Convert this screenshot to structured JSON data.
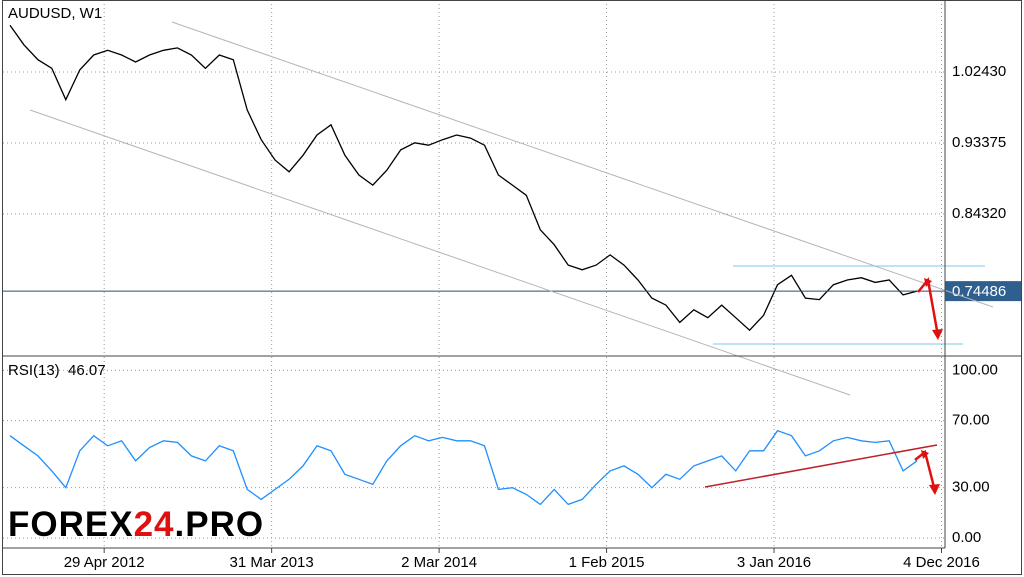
{
  "chart_data": [
    {
      "type": "line",
      "title": "AUDUSD, W1",
      "show_last": "axis",
      "grid": true,
      "x": [
        -27,
        -23,
        -19,
        -15,
        -11,
        -7,
        -3,
        1,
        5,
        9,
        13,
        17,
        21,
        25,
        29,
        33,
        37,
        41,
        45,
        49,
        53,
        57,
        61,
        65,
        69,
        73,
        77,
        81,
        85,
        89,
        93,
        97,
        101,
        105,
        109,
        113,
        117,
        121,
        125,
        129,
        133,
        137,
        141,
        145,
        149,
        153,
        157,
        161,
        165,
        169,
        173,
        177,
        181,
        185,
        189,
        193,
        197,
        201,
        205,
        209,
        213,
        217,
        221,
        225,
        229,
        233
      ],
      "series": [
        {
          "name": "AUDUSD",
          "color": "#000000",
          "values": [
            1.084,
            1.059,
            1.04,
            1.029,
            0.989,
            1.027,
            1.046,
            1.052,
            1.046,
            1.037,
            1.046,
            1.052,
            1.055,
            1.046,
            1.029,
            1.046,
            1.04,
            0.976,
            0.938,
            0.912,
            0.897,
            0.918,
            0.944,
            0.957,
            0.918,
            0.893,
            0.88,
            0.899,
            0.925,
            0.934,
            0.931,
            0.938,
            0.944,
            0.94,
            0.931,
            0.893,
            0.88,
            0.867,
            0.823,
            0.804,
            0.778,
            0.772,
            0.778,
            0.791,
            0.778,
            0.759,
            0.736,
            0.727,
            0.705,
            0.721,
            0.711,
            0.727,
            0.711,
            0.695,
            0.714,
            0.753,
            0.765,
            0.736,
            0.734,
            0.753,
            0.759,
            0.762,
            0.756,
            0.759,
            0.74,
            0.74486
          ]
        }
      ],
      "xlim": [
        -29,
        241
      ],
      "ylim": [
        0.6634,
        1.1161
      ],
      "yticks": [
        {
          "value": 0.8432,
          "label": "0.84320"
        },
        0.93375,
        {
          "value": 1.0243,
          "label": "1.02430"
        }
      ]
    },
    {
      "type": "line",
      "title": "RSI(13)",
      "show_last": "title",
      "grid": true,
      "x": [
        -27,
        -23,
        -19,
        -15,
        -11,
        -7,
        -3,
        1,
        5,
        9,
        13,
        17,
        21,
        25,
        29,
        33,
        37,
        41,
        45,
        49,
        53,
        57,
        61,
        65,
        69,
        73,
        77,
        81,
        85,
        89,
        93,
        97,
        101,
        105,
        109,
        113,
        117,
        121,
        125,
        129,
        133,
        137,
        141,
        145,
        149,
        153,
        157,
        161,
        165,
        169,
        173,
        177,
        181,
        185,
        189,
        193,
        197,
        201,
        205,
        209,
        213,
        217,
        221,
        225,
        229,
        233
      ],
      "series": [
        {
          "name": "RSI(13)",
          "color": "#1e8fff",
          "values": [
            61,
            55,
            49,
            40,
            30,
            52,
            61,
            55,
            58,
            46,
            54,
            58,
            57,
            49,
            46,
            55,
            52,
            29,
            23,
            29,
            35,
            43,
            55,
            52,
            38,
            35,
            32,
            46,
            55,
            61,
            58,
            60,
            58,
            58,
            55,
            29,
            30,
            26,
            20,
            29,
            20,
            23,
            32,
            40,
            43,
            38,
            30,
            38,
            35,
            43,
            46,
            49,
            40,
            52,
            52,
            64,
            61,
            49,
            52,
            58,
            60,
            58,
            57,
            58,
            40,
            46.07
          ]
        }
      ],
      "xlim": [
        -29,
        241
      ],
      "ylim": [
        -6,
        108
      ],
      "yticks": [
        {
          "value": 0,
          "label": "0.00"
        },
        {
          "value": 30,
          "label": "30.00"
        },
        {
          "value": 70,
          "label": "70.00"
        },
        {
          "value": 100,
          "label": "100.00"
        }
      ],
      "xticks": [
        {
          "value": 0,
          "label": "29 Apr 2012"
        },
        {
          "value": 48,
          "label": "31 Mar 2013"
        },
        {
          "value": 96,
          "label": "2 Mar 2014"
        },
        {
          "value": 144,
          "label": "1 Feb 2015"
        },
        {
          "value": 192,
          "label": "3 Jan 2016"
        },
        {
          "value": 240,
          "label": "4 Dec 2016"
        }
      ]
    }
  ],
  "watermark": [
    "FOREX",
    "24",
    ".PRO"
  ]
}
